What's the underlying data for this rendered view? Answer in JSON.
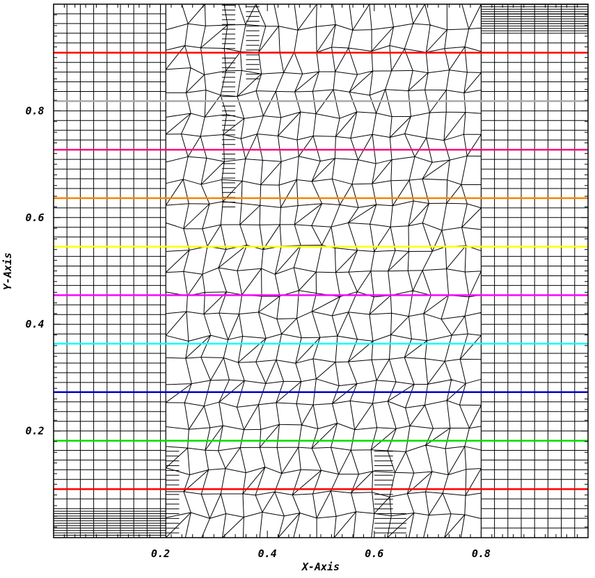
{
  "chart_data": {
    "type": "line",
    "title": "",
    "xlabel": "X-Axis",
    "ylabel": "Y-Axis",
    "xlim": [
      0,
      1
    ],
    "ylim": [
      0,
      1
    ],
    "x_ticks": [
      0.2,
      0.4,
      0.6,
      0.8
    ],
    "x_tick_labels": [
      "0.2",
      "0.4",
      "0.6",
      "0.8"
    ],
    "y_ticks": [
      0.2,
      0.4,
      0.6,
      0.8
    ],
    "y_tick_labels": [
      "0.2",
      "0.4",
      "0.6",
      "0.8"
    ],
    "grid": false,
    "background": "computational mesh: structured quads outside 0.21–0.80, polygonal cells inside",
    "series": [
      {
        "x": [
          0,
          1
        ],
        "y": [
          0.0909,
          0.0909
        ],
        "color": "#ff0000"
      },
      {
        "x": [
          0,
          1
        ],
        "y": [
          0.1818,
          0.1818
        ],
        "color": "#00dd00"
      },
      {
        "x": [
          0,
          1
        ],
        "y": [
          0.2727,
          0.2727
        ],
        "color": "#0000cc"
      },
      {
        "x": [
          0,
          1
        ],
        "y": [
          0.3636,
          0.3636
        ],
        "color": "#00ffff"
      },
      {
        "x": [
          0,
          1
        ],
        "y": [
          0.4545,
          0.4545
        ],
        "color": "#ff00ff"
      },
      {
        "x": [
          0,
          1
        ],
        "y": [
          0.5455,
          0.5455
        ],
        "color": "#ffff00"
      },
      {
        "x": [
          0,
          1
        ],
        "y": [
          0.6364,
          0.6364
        ],
        "color": "#ff8000"
      },
      {
        "x": [
          0,
          1
        ],
        "y": [
          0.7273,
          0.7273
        ],
        "color": "#ff0080"
      },
      {
        "x": [
          0,
          1
        ],
        "y": [
          0.8182,
          0.8182
        ],
        "color": "#aaaaaa"
      },
      {
        "x": [
          0,
          1
        ],
        "y": [
          0.9091,
          0.9091
        ],
        "color": "#ff0000"
      }
    ]
  }
}
